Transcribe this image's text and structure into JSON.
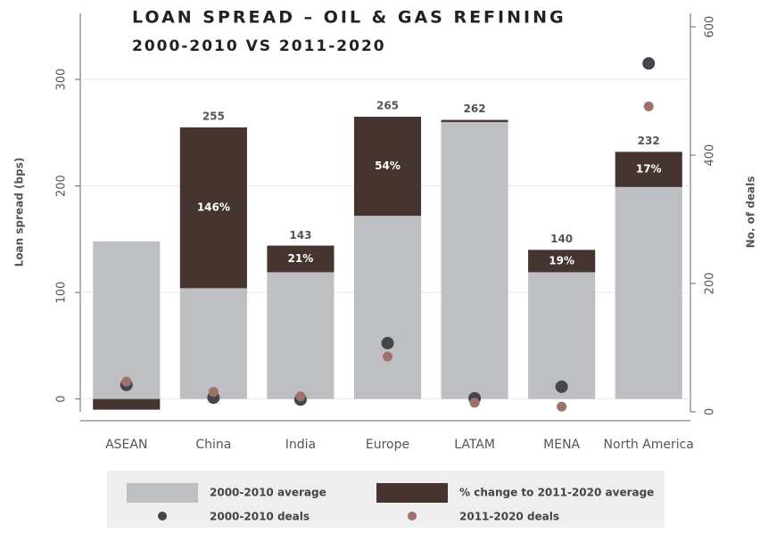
{
  "chart_data": {
    "type": "bar",
    "title": "LOAN SPREAD – OIL & GAS REFINING",
    "subtitle": "2000-2010 VS 2011-2020",
    "y_label": "Loan spread (bps)",
    "y2_label": "No. of deals",
    "categories": [
      "ASEAN",
      "China",
      "India",
      "Europe",
      "LATAM",
      "MENA",
      "North America"
    ],
    "series": [
      {
        "name": "2000-2010 average",
        "color": "#bebfc2",
        "values": [
          148,
          104,
          119,
          172,
          260,
          119,
          199
        ]
      },
      {
        "name": "% change to 2011-2020 average",
        "color": "#463431",
        "values": [
          -10,
          151,
          25,
          93,
          2,
          21,
          33
        ]
      },
      {
        "name": "2000-2010 deals",
        "color": "#444649",
        "axis": "y2",
        "values": [
          42,
          22,
          19,
          107,
          21,
          39,
          543
        ]
      },
      {
        "name": "2011-2020 deals",
        "color": "#a0706a",
        "axis": "y2",
        "values": [
          47,
          31,
          24,
          86,
          14,
          8,
          476
        ]
      }
    ],
    "totals": [
      null,
      255,
      143,
      265,
      262,
      140,
      232
    ],
    "percent_change": [
      null,
      146,
      21,
      54,
      null,
      19,
      17
    ],
    "percent_change_labels": [
      null,
      "146%",
      "21%",
      "54%",
      null,
      "19%",
      "17%"
    ],
    "ylim": [
      -12,
      362
    ],
    "yticks": [
      0,
      100,
      200,
      300
    ],
    "y2lim": [
      0,
      621
    ],
    "y2ticks": [
      0,
      200,
      400,
      600
    ],
    "grid": true
  }
}
